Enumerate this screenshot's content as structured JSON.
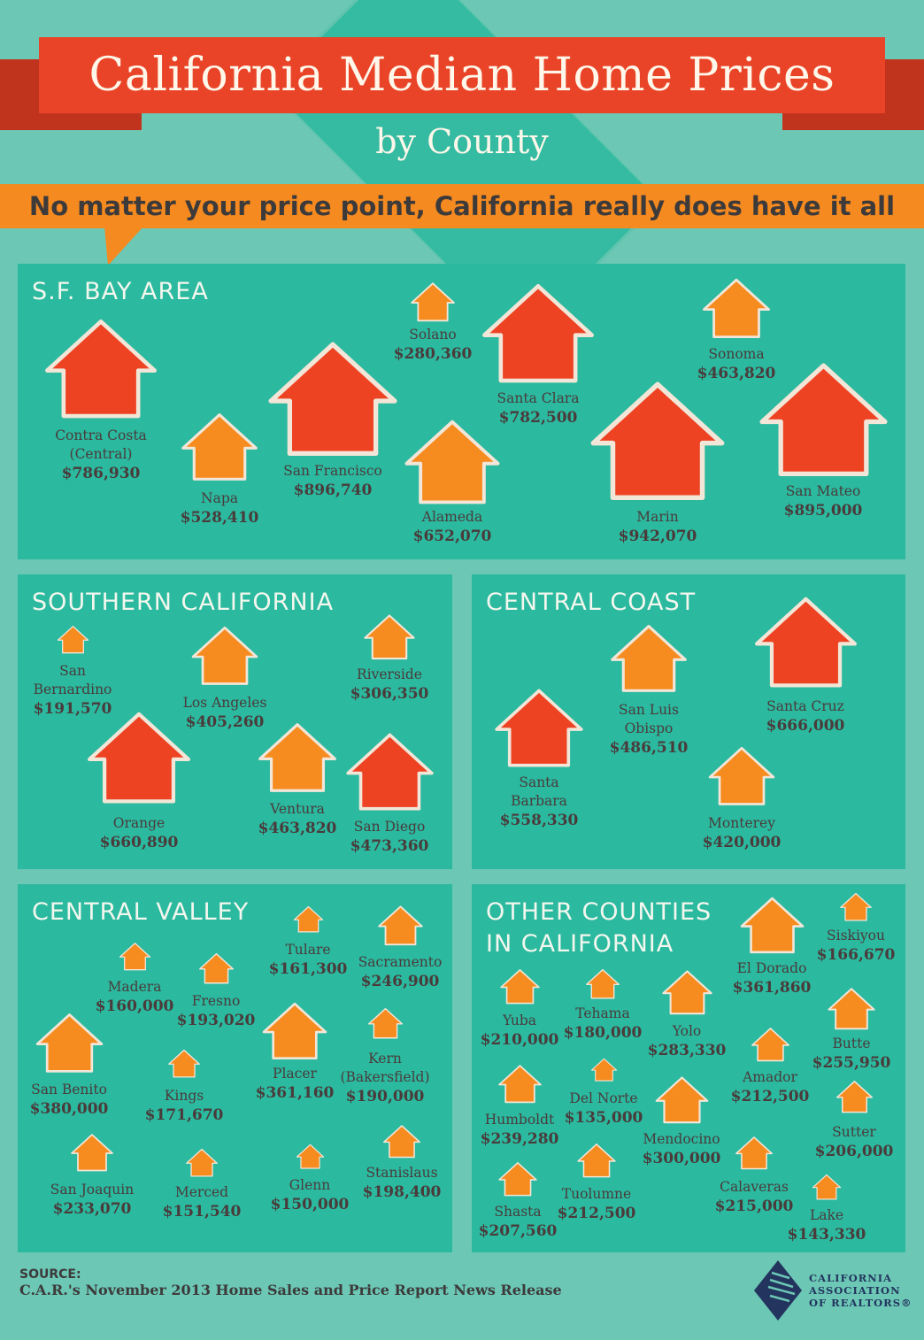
{
  "header": {
    "title": "California Median Home Prices",
    "subtitle": "by County",
    "tagline": "No matter your price point, California really does have it all"
  },
  "colors": {
    "background": "#6cc7b5",
    "panel": "#2bb99f",
    "high": "#ee4323",
    "low": "#f68b1f",
    "banner": "#e94428",
    "stripe": "#f58a20"
  },
  "regions": [
    {
      "title_lines": [
        "S.F. BAY AREA"
      ],
      "counties": [
        {
          "name": [
            "Contra Costa",
            "(Central)"
          ],
          "price": "$786,930",
          "color": "high"
        },
        {
          "name": [
            "Napa"
          ],
          "price": "$528,410",
          "color": "low"
        },
        {
          "name": [
            "San Francisco"
          ],
          "price": "$896,740",
          "color": "high"
        },
        {
          "name": [
            "Solano"
          ],
          "price": "$280,360",
          "color": "low"
        },
        {
          "name": [
            "Alameda"
          ],
          "price": "$652,070",
          "color": "low"
        },
        {
          "name": [
            "Santa Clara"
          ],
          "price": "$782,500",
          "color": "high"
        },
        {
          "name": [
            "Marin"
          ],
          "price": "$942,070",
          "color": "high"
        },
        {
          "name": [
            "Sonoma"
          ],
          "price": "$463,820",
          "color": "low"
        },
        {
          "name": [
            "San Mateo"
          ],
          "price": "$895,000",
          "color": "high"
        }
      ]
    },
    {
      "title_lines": [
        "SOUTHERN CALIFORNIA"
      ],
      "counties": [
        {
          "name": [
            "San",
            "Bernardino"
          ],
          "price": "$191,570",
          "color": "low"
        },
        {
          "name": [
            "Los Angeles"
          ],
          "price": "$405,260",
          "color": "low"
        },
        {
          "name": [
            "Riverside"
          ],
          "price": "$306,350",
          "color": "low"
        },
        {
          "name": [
            "Orange"
          ],
          "price": "$660,890",
          "color": "high"
        },
        {
          "name": [
            "Ventura"
          ],
          "price": "$463,820",
          "color": "low"
        },
        {
          "name": [
            "San Diego"
          ],
          "price": "$473,360",
          "color": "high"
        }
      ]
    },
    {
      "title_lines": [
        "CENTRAL COAST"
      ],
      "counties": [
        {
          "name": [
            "Santa",
            "Barbara"
          ],
          "price": "$558,330",
          "color": "high"
        },
        {
          "name": [
            "San Luis",
            "Obispo"
          ],
          "price": "$486,510",
          "color": "low"
        },
        {
          "name": [
            "Santa Cruz"
          ],
          "price": "$666,000",
          "color": "high"
        },
        {
          "name": [
            "Monterey"
          ],
          "price": "$420,000",
          "color": "low"
        }
      ]
    },
    {
      "title_lines": [
        "CENTRAL VALLEY"
      ],
      "counties": [
        {
          "name": [
            "Tulare"
          ],
          "price": "$161,300",
          "color": "low"
        },
        {
          "name": [
            "Sacramento"
          ],
          "price": "$246,900",
          "color": "low"
        },
        {
          "name": [
            "Madera"
          ],
          "price": "$160,000",
          "color": "low"
        },
        {
          "name": [
            "Fresno"
          ],
          "price": "$193,020",
          "color": "low"
        },
        {
          "name": [
            "San Benito"
          ],
          "price": "$380,000",
          "color": "low"
        },
        {
          "name": [
            "Kings"
          ],
          "price": "$171,670",
          "color": "low"
        },
        {
          "name": [
            "Placer"
          ],
          "price": "$361,160",
          "color": "low"
        },
        {
          "name": [
            "Kern",
            "(Bakersfield)"
          ],
          "price": "$190,000",
          "color": "low"
        },
        {
          "name": [
            "San Joaquin"
          ],
          "price": "$233,070",
          "color": "low"
        },
        {
          "name": [
            "Merced"
          ],
          "price": "$151,540",
          "color": "low"
        },
        {
          "name": [
            "Glenn"
          ],
          "price": "$150,000",
          "color": "low"
        },
        {
          "name": [
            "Stanislaus"
          ],
          "price": "$198,400",
          "color": "low"
        }
      ]
    },
    {
      "title_lines": [
        "OTHER COUNTIES",
        "IN CALIFORNIA"
      ],
      "counties": [
        {
          "name": [
            "El Dorado"
          ],
          "price": "$361,860",
          "color": "low"
        },
        {
          "name": [
            "Siskiyou"
          ],
          "price": "$166,670",
          "color": "low"
        },
        {
          "name": [
            "Yuba"
          ],
          "price": "$210,000",
          "color": "low"
        },
        {
          "name": [
            "Tehama"
          ],
          "price": "$180,000",
          "color": "low"
        },
        {
          "name": [
            "Yolo"
          ],
          "price": "$283,330",
          "color": "low"
        },
        {
          "name": [
            "Amador"
          ],
          "price": "$212,500",
          "color": "low"
        },
        {
          "name": [
            "Butte"
          ],
          "price": "$255,950",
          "color": "low"
        },
        {
          "name": [
            "Humboldt"
          ],
          "price": "$239,280",
          "color": "low"
        },
        {
          "name": [
            "Del Norte"
          ],
          "price": "$135,000",
          "color": "low"
        },
        {
          "name": [
            "Mendocino"
          ],
          "price": "$300,000",
          "color": "low"
        },
        {
          "name": [
            "Sutter"
          ],
          "price": "$206,000",
          "color": "low"
        },
        {
          "name": [
            "Shasta"
          ],
          "price": "$207,560",
          "color": "low"
        },
        {
          "name": [
            "Tuolumne"
          ],
          "price": "$212,500",
          "color": "low"
        },
        {
          "name": [
            "Calaveras"
          ],
          "price": "$215,000",
          "color": "low"
        },
        {
          "name": [
            "Lake"
          ],
          "price": "$143,330",
          "color": "low"
        }
      ]
    }
  ],
  "source": {
    "heading": "SOURCE:",
    "text": "C.A.R.'s November 2013 Home Sales and Price Report News Release"
  },
  "logo": {
    "lines": [
      "CALIFORNIA",
      "ASSOCIATION",
      "OF REALTORS®"
    ]
  }
}
